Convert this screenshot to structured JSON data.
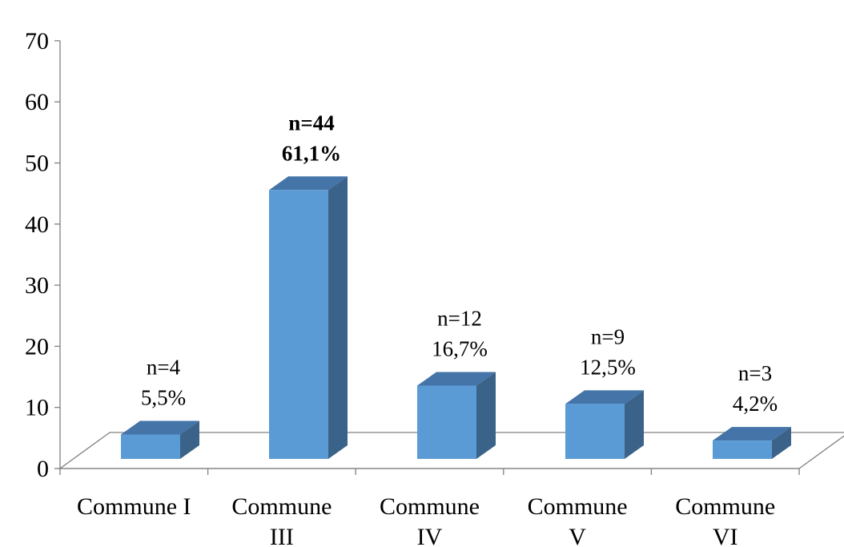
{
  "chart_data": {
    "type": "bar",
    "style": "3d-column",
    "categories": [
      [
        "Commune I"
      ],
      [
        "Commune",
        "III"
      ],
      [
        "Commune",
        "IV"
      ],
      [
        "Commune",
        "V"
      ],
      [
        "Commune",
        "VI"
      ]
    ],
    "values": [
      4,
      44,
      12,
      9,
      3
    ],
    "data_labels": [
      [
        "n=4",
        "5,5%"
      ],
      [
        "n=44",
        "61,1%"
      ],
      [
        "n=12",
        "16,7%"
      ],
      [
        "n=9",
        "12,5%"
      ],
      [
        "n=3",
        "4,2%"
      ]
    ],
    "bold_labels": [
      false,
      true,
      false,
      false,
      false
    ],
    "yticks": [
      0,
      10,
      20,
      30,
      40,
      50,
      60,
      70
    ],
    "ylim": [
      0,
      70
    ],
    "grid": false,
    "legend": "none",
    "colors": {
      "front": "#5B9BD5",
      "side": "#3B6389",
      "top": "#4474A8",
      "floor_line": "#808080"
    }
  }
}
